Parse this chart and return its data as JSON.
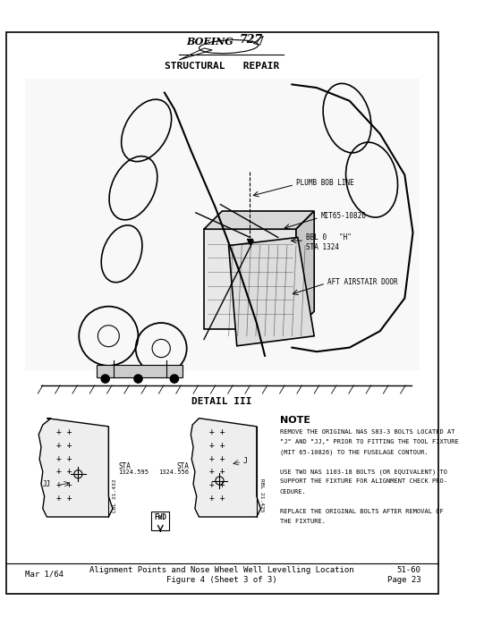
{
  "bg_color": "#ffffff",
  "page_border_color": "#000000",
  "title_header": "STRUCTURAL   REPAIR",
  "detail_label": "DETAIL III",
  "footer_date": "Mar 1/64",
  "footer_title_line1": "Alignment Points and Nose Wheel Well Levelling Location",
  "footer_title_line2": "Figure 4 (Sheet 3 of 3)",
  "footer_ref1": "51-60",
  "footer_ref2": "Page 23",
  "note_title": "NOTE",
  "note_line1": "REMOVE THE ORIGINAL NAS S83-3 BOLTS LOCATED AT",
  "note_line2": "\"J\" AND \"JJ,\" PRIOR TO FITTING THE TOOL FIXTURE",
  "note_line3": "(MIT 65-10826) TO THE FUSELAGE CONTOUR.",
  "note_line4": "USE TWO NAS 1103-18 BOLTS (OR EQUIVALENT) TO",
  "note_line5": "SUPPORT THE FIXTURE FOR ALIGNMENT CHECK PRO-",
  "note_line6": "CEDURE.",
  "note_line7": "REPLACE THE ORIGINAL BOLTS AFTER REMOVAL OF",
  "note_line8": "THE FIXTURE.",
  "annot_plumb": "PLUMB BOB LINE",
  "annot_mit": "MIT65-10826",
  "annot_bbl": "BBL 0   \"H\"",
  "annot_sta": "STA 1324",
  "annot_aft": "AFT AIRSTAIR DOOR",
  "left_sta_label": "STA",
  "left_sta_val": "1324.595",
  "left_lbl_label": "LBL 21.432",
  "left_jj_label": "JJ",
  "right_sta_label": "STA",
  "right_sta_val": "1324.556",
  "right_rbl_label": "RBL 21.425",
  "fwd_label": "FWD"
}
